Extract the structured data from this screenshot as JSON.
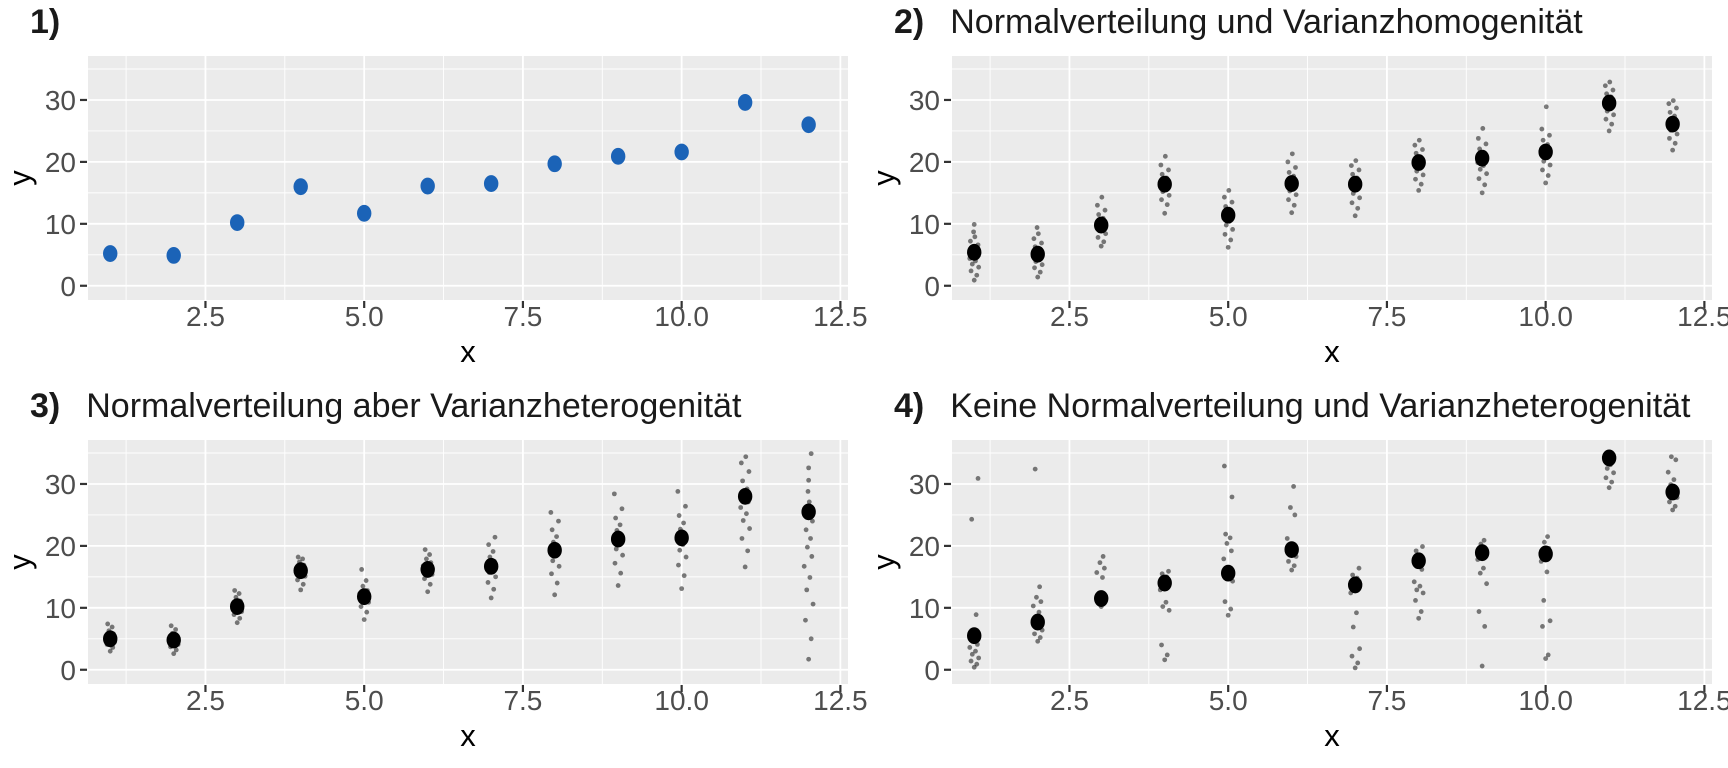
{
  "colors": {
    "panel_bg": "#EBEBEB",
    "grid": "#FFFFFF",
    "tick_label": "#4D4D4D",
    "axis_title": "#000000",
    "title_text": "#1A1A1A",
    "point_blue": "#1B63B7",
    "point_black": "#000000"
  },
  "chart_data": [
    {
      "type": "scatter",
      "panel_number": "1)",
      "title": "",
      "xlabel": "x",
      "ylabel": "y",
      "x_tick_values": [
        2.5,
        5.0,
        7.5,
        10.0,
        12.5
      ],
      "x_tick_labels": [
        "2.5",
        "5.0",
        "7.5",
        "10.0",
        "12.5"
      ],
      "y_tick_values": [
        0,
        10,
        20,
        30
      ],
      "y_tick_labels": [
        "0",
        "10",
        "20",
        "30"
      ],
      "x_minor_values": [
        1.25,
        3.75,
        6.25,
        8.75,
        11.25
      ],
      "y_minor_values": [
        5,
        15,
        25,
        35
      ],
      "xlim": [
        0.65,
        12.62
      ],
      "ylim": [
        -2.3,
        37.1
      ],
      "grid": true,
      "legend": "none",
      "point_color": "#1B63B7",
      "points": [
        [
          1,
          5.2
        ],
        [
          2,
          4.9
        ],
        [
          3,
          10.2
        ],
        [
          4,
          16.0
        ],
        [
          5,
          11.7
        ],
        [
          6,
          16.1
        ],
        [
          7,
          16.5
        ],
        [
          8,
          19.7
        ],
        [
          9,
          20.9
        ],
        [
          10,
          21.6
        ],
        [
          11,
          29.6
        ],
        [
          12,
          26.0
        ]
      ],
      "clusters": []
    },
    {
      "type": "scatter",
      "panel_number": "2)",
      "title": "Normalverteilung und Varianzhomogenität",
      "xlabel": "x",
      "ylabel": "y",
      "x_tick_values": [
        2.5,
        5.0,
        7.5,
        10.0,
        12.5
      ],
      "x_tick_labels": [
        "2.5",
        "5.0",
        "7.5",
        "10.0",
        "12.5"
      ],
      "y_tick_values": [
        0,
        10,
        20,
        30
      ],
      "y_tick_labels": [
        "0",
        "10",
        "20",
        "30"
      ],
      "x_minor_values": [
        1.25,
        3.75,
        6.25,
        8.75,
        11.25
      ],
      "y_minor_values": [
        5,
        15,
        25,
        35
      ],
      "xlim": [
        0.65,
        12.62
      ],
      "ylim": [
        -2.3,
        37.1
      ],
      "grid": true,
      "legend": "none",
      "point_color": "#000000",
      "points": [
        [
          1,
          5.4
        ],
        [
          2,
          5.1
        ],
        [
          3,
          9.8
        ],
        [
          4,
          16.4
        ],
        [
          5,
          11.4
        ],
        [
          6,
          16.5
        ],
        [
          7,
          16.4
        ],
        [
          8,
          19.9
        ],
        [
          9,
          20.6
        ],
        [
          10,
          21.6
        ],
        [
          11,
          29.5
        ],
        [
          12,
          26.1
        ]
      ],
      "clusters": [
        {
          "x": 1,
          "y_values": [
            0.9,
            1.7,
            2.4,
            3.0,
            3.5,
            4.0,
            4.4,
            4.8,
            5.1,
            5.7,
            6.1,
            6.6,
            7.2,
            7.9,
            8.7,
            9.9
          ]
        },
        {
          "x": 2,
          "y_values": [
            1.4,
            2.2,
            2.9,
            3.4,
            3.9,
            4.3,
            4.7,
            5.0,
            5.4,
            5.8,
            6.3,
            6.9,
            7.6,
            8.4,
            9.4
          ]
        },
        {
          "x": 3,
          "y_values": [
            6.4,
            7.1,
            7.8,
            8.4,
            8.9,
            9.3,
            9.7,
            10.0,
            10.4,
            10.9,
            11.5,
            12.2,
            13.0,
            14.3
          ]
        },
        {
          "x": 4,
          "y_values": [
            11.7,
            13.1,
            13.9,
            14.6,
            15.2,
            15.7,
            16.1,
            16.5,
            16.9,
            17.4,
            18.0,
            18.7,
            19.5,
            20.9
          ]
        },
        {
          "x": 5,
          "y_values": [
            6.2,
            7.4,
            8.3,
            9.1,
            9.8,
            10.4,
            10.9,
            11.3,
            11.7,
            12.2,
            12.8,
            13.5,
            14.3,
            15.4
          ]
        },
        {
          "x": 6,
          "y_values": [
            11.8,
            13.0,
            13.9,
            14.7,
            15.3,
            15.9,
            16.3,
            16.7,
            17.2,
            17.7,
            18.3,
            19.1,
            20.0,
            21.3
          ]
        },
        {
          "x": 7,
          "y_values": [
            11.3,
            12.5,
            13.4,
            14.2,
            14.9,
            15.5,
            16.0,
            16.4,
            16.9,
            17.4,
            18.0,
            18.7,
            19.4,
            20.2
          ]
        },
        {
          "x": 8,
          "y_values": [
            15.4,
            16.4,
            17.2,
            17.9,
            18.5,
            19.0,
            19.5,
            19.9,
            20.3,
            20.8,
            21.4,
            22.0,
            22.7,
            23.5
          ]
        },
        {
          "x": 9,
          "y_values": [
            15.0,
            16.3,
            17.3,
            18.1,
            18.8,
            19.4,
            19.9,
            20.4,
            20.9,
            21.5,
            22.1,
            22.9,
            23.8,
            25.4
          ]
        },
        {
          "x": 10,
          "y_values": [
            16.6,
            17.8,
            18.7,
            19.5,
            20.1,
            20.7,
            21.2,
            21.7,
            22.2,
            22.8,
            23.5,
            24.3,
            25.3,
            28.9
          ]
        },
        {
          "x": 11,
          "y_values": [
            25.0,
            26.1,
            26.9,
            27.6,
            28.2,
            28.7,
            29.2,
            29.6,
            30.0,
            30.5,
            31.0,
            31.6,
            32.3,
            32.9
          ]
        },
        {
          "x": 12,
          "y_values": [
            21.9,
            23.0,
            23.8,
            24.5,
            25.1,
            25.6,
            26.0,
            26.4,
            26.9,
            27.4,
            28.0,
            28.7,
            29.4,
            29.9
          ]
        }
      ]
    },
    {
      "type": "scatter",
      "panel_number": "3)",
      "title": "Normalverteilung aber Varianzheterogenität",
      "xlabel": "x",
      "ylabel": "y",
      "x_tick_values": [
        2.5,
        5.0,
        7.5,
        10.0,
        12.5
      ],
      "x_tick_labels": [
        "2.5",
        "5.0",
        "7.5",
        "10.0",
        "12.5"
      ],
      "y_tick_values": [
        0,
        10,
        20,
        30
      ],
      "y_tick_labels": [
        "0",
        "10",
        "20",
        "30"
      ],
      "x_minor_values": [
        1.25,
        3.75,
        6.25,
        8.75,
        11.25
      ],
      "y_minor_values": [
        5,
        15,
        25,
        35
      ],
      "xlim": [
        0.65,
        12.62
      ],
      "ylim": [
        -2.3,
        37.1
      ],
      "grid": true,
      "legend": "none",
      "point_color": "#000000",
      "points": [
        [
          1,
          5.0
        ],
        [
          2,
          4.8
        ],
        [
          3,
          10.2
        ],
        [
          4,
          16.0
        ],
        [
          5,
          11.8
        ],
        [
          6,
          16.2
        ],
        [
          7,
          16.7
        ],
        [
          8,
          19.3
        ],
        [
          9,
          21.1
        ],
        [
          10,
          21.3
        ],
        [
          11,
          28.0
        ],
        [
          12,
          25.5
        ]
      ],
      "clusters": [
        {
          "x": 1,
          "y_values": [
            3.0,
            3.6,
            4.1,
            4.5,
            4.8,
            5.1,
            5.4,
            5.8,
            6.3,
            6.9,
            7.4
          ]
        },
        {
          "x": 2,
          "y_values": [
            2.6,
            3.2,
            3.7,
            4.1,
            4.4,
            4.7,
            5.0,
            5.4,
            5.9,
            6.5,
            7.1
          ]
        },
        {
          "x": 3,
          "y_values": [
            7.6,
            8.3,
            8.9,
            9.4,
            9.8,
            10.2,
            10.6,
            11.1,
            11.7,
            12.3,
            12.8
          ]
        },
        {
          "x": 4,
          "y_values": [
            12.9,
            13.8,
            14.5,
            15.1,
            15.6,
            16.0,
            16.4,
            16.9,
            17.4,
            17.9,
            18.2
          ]
        },
        {
          "x": 5,
          "y_values": [
            8.1,
            9.3,
            10.2,
            10.9,
            11.4,
            11.9,
            12.3,
            12.8,
            13.5,
            14.4,
            16.2
          ]
        },
        {
          "x": 6,
          "y_values": [
            12.6,
            13.8,
            14.7,
            15.4,
            15.9,
            16.3,
            16.8,
            17.3,
            17.9,
            18.6,
            19.4
          ]
        },
        {
          "x": 7,
          "y_values": [
            11.6,
            13.0,
            14.1,
            15.0,
            15.7,
            16.3,
            16.9,
            17.5,
            18.2,
            19.1,
            20.2,
            21.4
          ]
        },
        {
          "x": 8,
          "y_values": [
            12.1,
            14.0,
            15.5,
            16.7,
            17.6,
            18.4,
            19.1,
            19.8,
            20.6,
            21.5,
            22.6,
            24.0,
            25.4
          ]
        },
        {
          "x": 9,
          "y_values": [
            13.6,
            15.6,
            17.2,
            18.5,
            19.5,
            20.3,
            21.0,
            21.7,
            22.5,
            23.4,
            24.5,
            26.0,
            28.4
          ]
        },
        {
          "x": 10,
          "y_values": [
            13.1,
            15.2,
            16.9,
            18.2,
            19.3,
            20.2,
            21.0,
            21.8,
            22.7,
            23.7,
            24.9,
            26.4,
            28.8
          ]
        },
        {
          "x": 11,
          "y_values": [
            16.6,
            19.2,
            21.2,
            22.8,
            24.1,
            25.2,
            26.2,
            27.1,
            28.1,
            29.2,
            30.5,
            32.0,
            33.4,
            34.4
          ]
        },
        {
          "x": 12,
          "y_values": [
            1.7,
            5.0,
            8.0,
            10.6,
            12.9,
            14.9,
            16.7,
            18.3,
            19.8,
            21.2,
            22.6,
            24.0,
            25.5,
            27.1,
            28.8,
            30.6,
            32.6,
            34.9
          ]
        }
      ]
    },
    {
      "type": "scatter",
      "panel_number": "4)",
      "title": "Keine Normalverteilung und Varianzheterogenität",
      "xlabel": "x",
      "ylabel": "y",
      "x_tick_values": [
        2.5,
        5.0,
        7.5,
        10.0,
        12.5
      ],
      "x_tick_labels": [
        "2.5",
        "5.0",
        "7.5",
        "10.0",
        "12.5"
      ],
      "y_tick_values": [
        0,
        10,
        20,
        30
      ],
      "y_tick_labels": [
        "0",
        "10",
        "20",
        "30"
      ],
      "x_minor_values": [
        1.25,
        3.75,
        6.25,
        8.75,
        11.25
      ],
      "y_minor_values": [
        5,
        15,
        25,
        35
      ],
      "xlim": [
        0.65,
        12.62
      ],
      "ylim": [
        -2.3,
        37.1
      ],
      "grid": true,
      "legend": "none",
      "point_color": "#000000",
      "points": [
        [
          1,
          5.5
        ],
        [
          2,
          7.7
        ],
        [
          3,
          11.5
        ],
        [
          4,
          14.0
        ],
        [
          5,
          15.6
        ],
        [
          6,
          19.4
        ],
        [
          7,
          13.7
        ],
        [
          8,
          17.6
        ],
        [
          9,
          18.9
        ],
        [
          10,
          18.7
        ],
        [
          11,
          34.2
        ],
        [
          12,
          28.7
        ]
      ],
      "clusters": [
        {
          "x": 1,
          "y_values": [
            0.4,
            0.9,
            1.4,
            1.9,
            2.5,
            3.0,
            3.6,
            4.1,
            4.7,
            8.9,
            24.3,
            30.9
          ]
        },
        {
          "x": 2,
          "y_values": [
            4.6,
            5.2,
            5.8,
            6.4,
            7.0,
            9.3,
            10.3,
            11.0,
            11.7,
            13.4,
            32.4
          ]
        },
        {
          "x": 3,
          "y_values": [
            10.2,
            10.7,
            11.1,
            11.9,
            12.4,
            14.9,
            15.7,
            16.4,
            17.3,
            18.3
          ]
        },
        {
          "x": 4,
          "y_values": [
            1.6,
            2.4,
            4.0,
            9.6,
            10.2,
            10.9,
            12.9,
            13.4,
            14.4,
            15.0,
            15.5,
            15.9
          ]
        },
        {
          "x": 5,
          "y_values": [
            8.8,
            9.8,
            11.0,
            14.3,
            14.9,
            15.9,
            17.9,
            19.2,
            20.4,
            21.3,
            21.9,
            27.9,
            32.9
          ]
        },
        {
          "x": 6,
          "y_values": [
            16.1,
            16.8,
            17.5,
            18.3,
            19.0,
            20.0,
            21.2,
            25.0,
            26.2,
            29.6
          ]
        },
        {
          "x": 7,
          "y_values": [
            0.3,
            1.1,
            2.2,
            3.4,
            6.9,
            9.2,
            12.4,
            13.0,
            14.2,
            14.8,
            15.3,
            16.4
          ]
        },
        {
          "x": 8,
          "y_values": [
            8.3,
            9.4,
            11.2,
            12.4,
            12.9,
            13.5,
            14.2,
            16.2,
            16.9,
            18.3,
            19.2,
            19.9
          ]
        },
        {
          "x": 9,
          "y_values": [
            0.6,
            7.0,
            9.4,
            13.9,
            15.6,
            16.4,
            17.8,
            19.5,
            20.3,
            20.9
          ]
        },
        {
          "x": 10,
          "y_values": [
            1.8,
            2.4,
            7.0,
            7.9,
            11.2,
            15.8,
            17.5,
            19.6,
            20.6,
            21.5
          ]
        },
        {
          "x": 11,
          "y_values": [
            29.4,
            30.3,
            31.0,
            31.8,
            32.5,
            33.1
          ]
        },
        {
          "x": 12,
          "y_values": [
            25.8,
            26.4,
            27.1,
            27.8,
            29.9,
            30.7,
            31.9,
            33.9,
            34.4
          ]
        }
      ]
    }
  ]
}
